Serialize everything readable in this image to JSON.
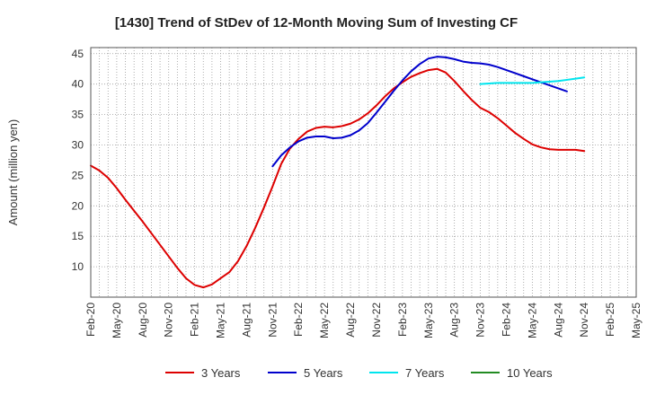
{
  "chart_data": {
    "type": "line",
    "title": "[1430]  Trend of StDev of 12-Month Moving Sum of Investing CF",
    "xlabel": "",
    "ylabel": "Amount (million yen)",
    "ylim": [
      5,
      46
    ],
    "yticks": [
      10,
      15,
      20,
      25,
      30,
      35,
      40,
      45
    ],
    "grid": true,
    "legend_position": "bottom",
    "x_tick_labels": [
      "Feb-20",
      "May-20",
      "Aug-20",
      "Nov-20",
      "Feb-21",
      "May-21",
      "Aug-21",
      "Nov-21",
      "Feb-22",
      "May-22",
      "Aug-22",
      "Nov-22",
      "Feb-23",
      "May-23",
      "Aug-23",
      "Nov-23",
      "Feb-24",
      "May-24",
      "Aug-24",
      "Nov-24",
      "Feb-25",
      "May-25"
    ],
    "x_range_months": [
      0,
      63
    ],
    "series": [
      {
        "name": "3 Years",
        "color": "#dd0000",
        "start_month": 0,
        "values": [
          26.6,
          25.8,
          24.6,
          22.9,
          21.0,
          19.2,
          17.4,
          15.5,
          13.6,
          11.7,
          9.8,
          8.1,
          7.0,
          6.6,
          7.1,
          8.1,
          9.1,
          10.9,
          13.4,
          16.4,
          19.7,
          23.2,
          26.9,
          29.4,
          31.0,
          32.2,
          32.8,
          33.0,
          32.9,
          33.1,
          33.5,
          34.2,
          35.2,
          36.5,
          38.0,
          39.3,
          40.3,
          41.2,
          41.8,
          42.3,
          42.5,
          41.9,
          40.5,
          38.9,
          37.4,
          36.1,
          35.4,
          34.4,
          33.2,
          32.0,
          31.0,
          30.1,
          29.6,
          29.3,
          29.2,
          29.2,
          29.2,
          29.0
        ]
      },
      {
        "name": "5 Years",
        "color": "#0000cc",
        "start_month": 21,
        "values": [
          26.5,
          28.3,
          29.6,
          30.6,
          31.2,
          31.4,
          31.4,
          31.1,
          31.2,
          31.6,
          32.4,
          33.6,
          35.3,
          37.1,
          38.9,
          40.6,
          42.1,
          43.3,
          44.2,
          44.5,
          44.4,
          44.1,
          43.7,
          43.5,
          43.4,
          43.2,
          42.8,
          42.3,
          41.8,
          41.3,
          40.8,
          40.3,
          39.8,
          39.3,
          38.8
        ]
      },
      {
        "name": "7 Years",
        "color": "#00e5ee",
        "start_month": 45,
        "values": [
          40.0,
          40.1,
          40.2,
          40.2,
          40.2,
          40.2,
          40.2,
          40.3,
          40.4,
          40.5,
          40.7,
          40.9,
          41.1
        ]
      },
      {
        "name": "10 Years",
        "color": "#228b22",
        "start_month": 0,
        "values": []
      }
    ]
  }
}
